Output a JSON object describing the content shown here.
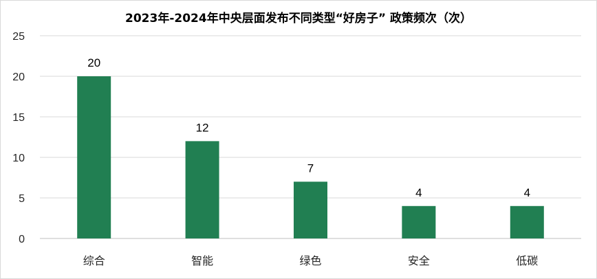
{
  "chart_data": {
    "type": "bar",
    "title": "2023年-2024年中央层面发布不同类型“好房子” 政策频次（次）",
    "categories": [
      "综合",
      "智能",
      "绿色",
      "安全",
      "低碳"
    ],
    "values": [
      20,
      12,
      7,
      4,
      4
    ],
    "xlabel": "",
    "ylabel": "",
    "ylim": [
      0,
      25
    ],
    "yticks": [
      0,
      5,
      10,
      15,
      20,
      25
    ],
    "grid": true,
    "legend": "none",
    "bar_color": "#217f52",
    "data_labels": true
  }
}
